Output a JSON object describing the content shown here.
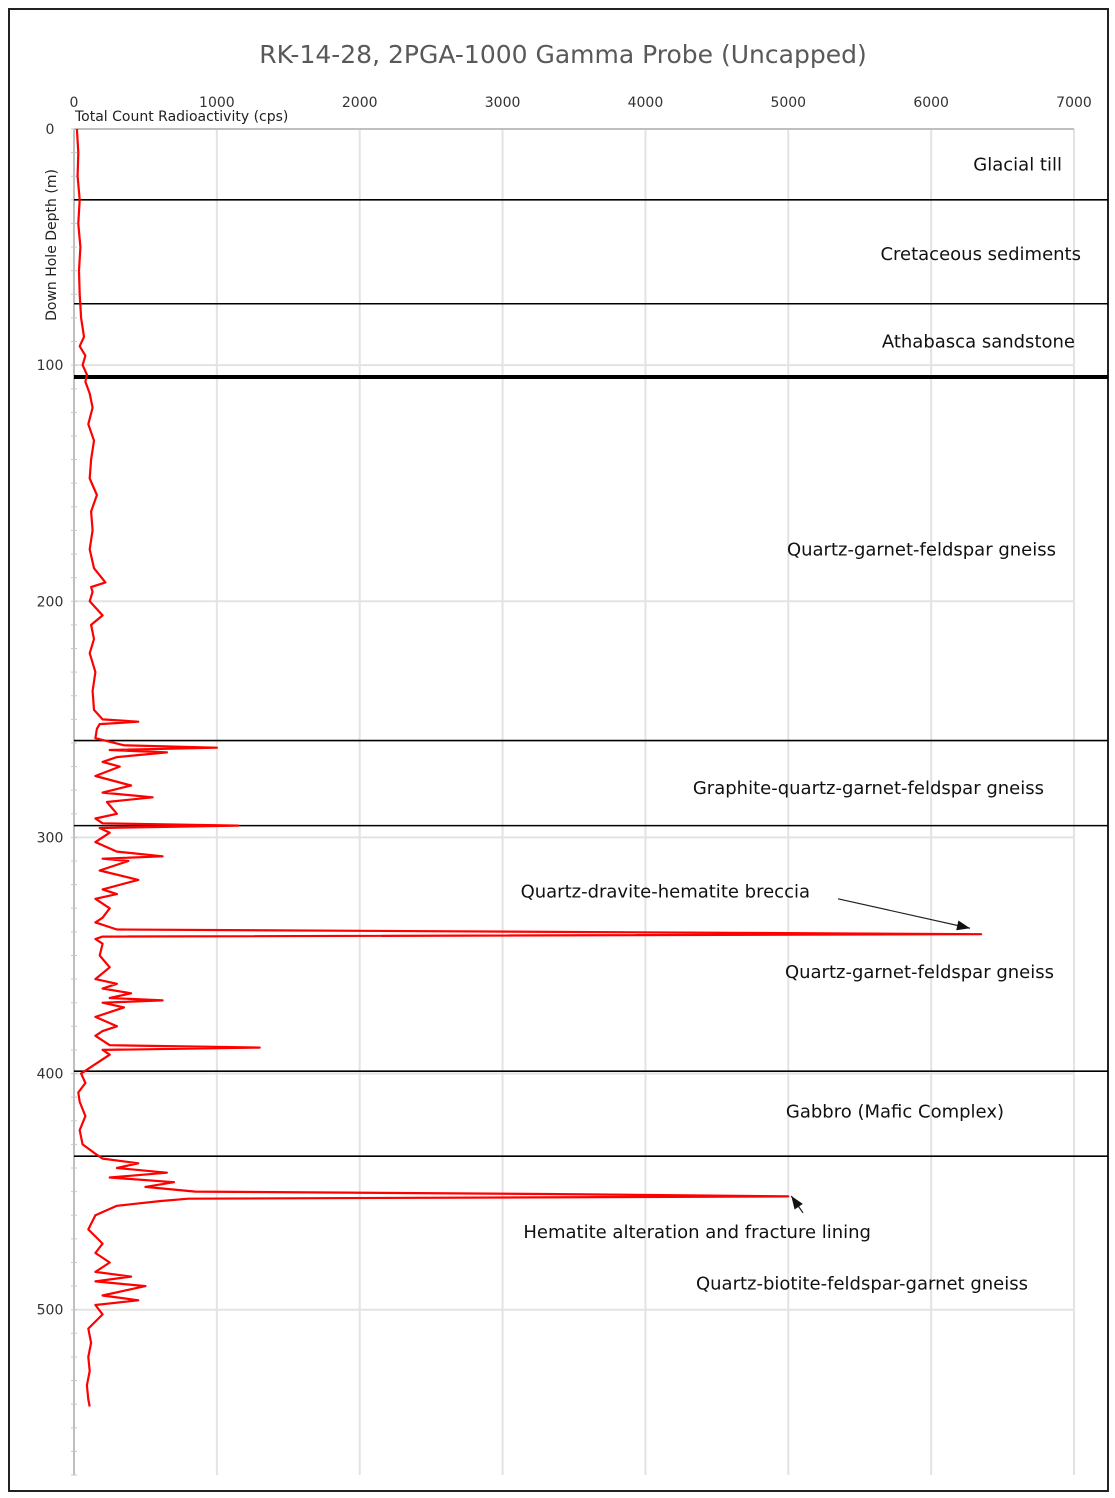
{
  "chart_data": {
    "type": "line",
    "title": "RK-14-28, 2PGA-1000 Gamma Probe (Uncapped)",
    "xlabel": "Total Count Radioactivity (cps)",
    "ylabel": "Down Hole Depth (m)",
    "xlim": [
      0,
      7000
    ],
    "ylim": [
      0,
      570
    ],
    "x_ticks": [
      "0",
      "1000",
      "2000",
      "3000",
      "4000",
      "5000",
      "6000",
      "7000"
    ],
    "y_ticks": [
      "0",
      "100",
      "200",
      "300",
      "400",
      "500"
    ],
    "y_tick_values": [
      0,
      100,
      200,
      300,
      400,
      500
    ],
    "grid": true,
    "series_color": "#ff0000",
    "series": [
      {
        "depth": [
          0,
          10,
          20,
          30,
          40,
          50,
          60,
          70,
          80,
          88,
          92,
          96,
          100,
          104,
          107,
          112,
          118,
          125,
          132,
          140,
          148,
          155,
          162,
          170,
          178,
          186,
          192,
          194,
          196,
          200,
          206,
          210,
          216,
          222,
          230,
          238,
          246,
          250,
          251,
          252,
          254,
          258,
          261,
          262,
          263,
          264,
          266,
          268,
          270,
          274,
          278,
          281,
          283,
          285,
          290,
          292,
          294,
          295,
          296,
          298,
          302,
          306,
          308,
          309,
          310,
          314,
          318,
          322,
          324,
          326,
          330,
          334,
          336,
          339,
          341,
          342,
          343,
          345,
          350,
          355,
          360,
          362,
          364,
          366,
          368,
          369,
          370,
          372,
          376,
          380,
          382,
          384,
          388,
          389,
          390,
          392,
          396,
          400,
          404,
          408,
          412,
          418,
          424,
          430,
          434,
          436,
          438,
          440,
          442,
          444,
          446,
          448,
          450,
          451,
          452,
          453,
          454,
          456,
          460,
          466,
          472,
          476,
          480,
          484,
          486,
          488,
          490,
          494,
          496,
          498,
          502,
          508,
          514,
          520,
          526,
          532,
          538,
          541
        ],
        "cps": [
          20,
          30,
          25,
          40,
          30,
          45,
          35,
          40,
          50,
          70,
          40,
          80,
          60,
          90,
          80,
          110,
          130,
          100,
          140,
          120,
          110,
          160,
          120,
          130,
          110,
          140,
          220,
          120,
          130,
          110,
          200,
          120,
          140,
          110,
          150,
          130,
          140,
          200,
          450,
          180,
          160,
          150,
          350,
          1000,
          250,
          650,
          300,
          200,
          320,
          150,
          400,
          200,
          550,
          230,
          300,
          150,
          200,
          1150,
          180,
          250,
          150,
          300,
          620,
          200,
          380,
          180,
          450,
          200,
          300,
          150,
          250,
          200,
          150,
          300,
          6350,
          200,
          150,
          200,
          180,
          250,
          150,
          300,
          200,
          400,
          250,
          620,
          200,
          350,
          150,
          300,
          200,
          150,
          250,
          1300,
          200,
          250,
          150,
          50,
          80,
          30,
          40,
          80,
          40,
          60,
          150,
          200,
          450,
          300,
          650,
          250,
          700,
          500,
          850,
          3300,
          5000,
          800,
          600,
          300,
          150,
          100,
          200,
          150,
          250,
          150,
          400,
          150,
          500,
          200,
          450,
          150,
          200,
          100,
          120,
          100,
          110,
          90,
          100,
          110
        ]
      }
    ],
    "boundaries": [
      30,
      74,
      105,
      259,
      295,
      399,
      435
    ],
    "zones": [
      {
        "label": "Glacial till",
        "depth": 15
      },
      {
        "label": "Cretaceous sediments",
        "depth": 53
      },
      {
        "label": "Athabasca sandstone",
        "depth": 90
      },
      {
        "label": "Quartz-garnet-feldspar gneiss",
        "depth": 178
      },
      {
        "label": "Graphite-quartz-garnet-feldspar gneiss",
        "depth": 279
      },
      {
        "label": "Quartz-dravite-hematite breccia",
        "depth": 323
      },
      {
        "label": "Quartz-garnet-feldspar gneiss",
        "depth": 357
      },
      {
        "label": "Gabbro (Mafic Complex)",
        "depth": 416
      },
      {
        "label": "Hematite alteration and fracture lining",
        "depth": 467
      },
      {
        "label": "Quartz-biotite-feldspar-garnet gneiss",
        "depth": 489
      }
    ],
    "annotations": [
      {
        "text": "Quartz-dravite-hematite breccia",
        "target_depth": 341,
        "target_cps": 6300
      },
      {
        "text": "Hematite alteration and fracture lining",
        "target_depth": 451,
        "target_cps": 5000
      }
    ]
  }
}
